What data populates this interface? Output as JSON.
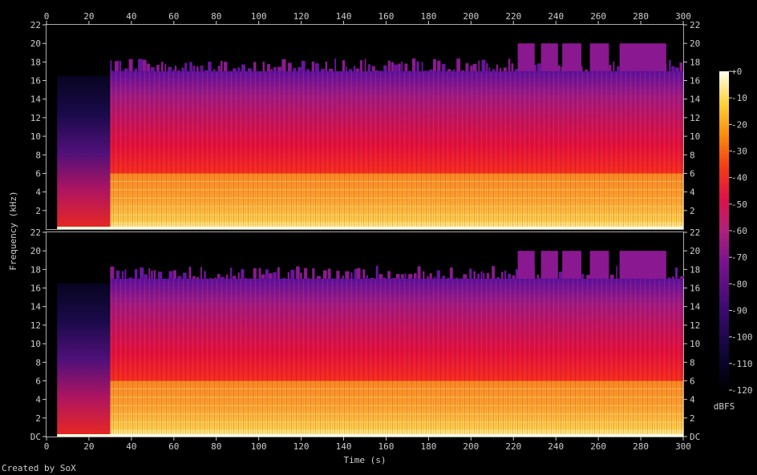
{
  "chart_data": {
    "type": "heatmap",
    "xlabel": "Time (s)",
    "ylabel": "Frequency (kHz)",
    "x_ticks": [
      0,
      20,
      40,
      60,
      80,
      100,
      120,
      140,
      160,
      180,
      200,
      220,
      240,
      260,
      280,
      300
    ],
    "xlim": [
      0,
      300
    ],
    "ylim_khz": [
      0,
      22
    ],
    "channels": [
      {
        "y_tick_labels": [
          "22",
          "20",
          "18",
          "16",
          "14",
          "12",
          "10",
          "8",
          "6",
          "4",
          "2"
        ],
        "y_tick_values": [
          22,
          20,
          18,
          16,
          14,
          12,
          10,
          8,
          6,
          4,
          2
        ]
      },
      {
        "y_tick_labels": [
          "22",
          "20",
          "18",
          "16",
          "14",
          "12",
          "10",
          "8",
          "6",
          "4",
          "2",
          "DC"
        ],
        "y_tick_values": [
          22,
          20,
          18,
          16,
          14,
          12,
          10,
          8,
          6,
          4,
          2,
          0
        ]
      }
    ],
    "colorbar": {
      "unit": "dBFS",
      "range": [
        -120,
        0
      ],
      "tick_labels": [
        "+0",
        "-10",
        "-20",
        "-30",
        "-40",
        "-50",
        "-60",
        "-70",
        "-80",
        "-90",
        "-100",
        "-110",
        "-120"
      ],
      "tick_values": [
        0,
        -10,
        -20,
        -30,
        -40,
        -50,
        -60,
        -70,
        -80,
        -90,
        -100,
        -110,
        -120
      ]
    },
    "spectral_content": {
      "signal_onset_s": 5,
      "full_band_onset_s": 30,
      "high_energy_band_khz": [
        0,
        6
      ],
      "upper_cutoff_khz": 17,
      "extended_cutoff_khz": 20,
      "extended_cutoff_segments_s": [
        [
          222,
          230
        ],
        [
          233,
          241
        ],
        [
          243,
          252
        ],
        [
          256,
          265
        ],
        [
          270,
          292
        ]
      ]
    }
  },
  "footer": {
    "credit": "Created by SoX"
  }
}
